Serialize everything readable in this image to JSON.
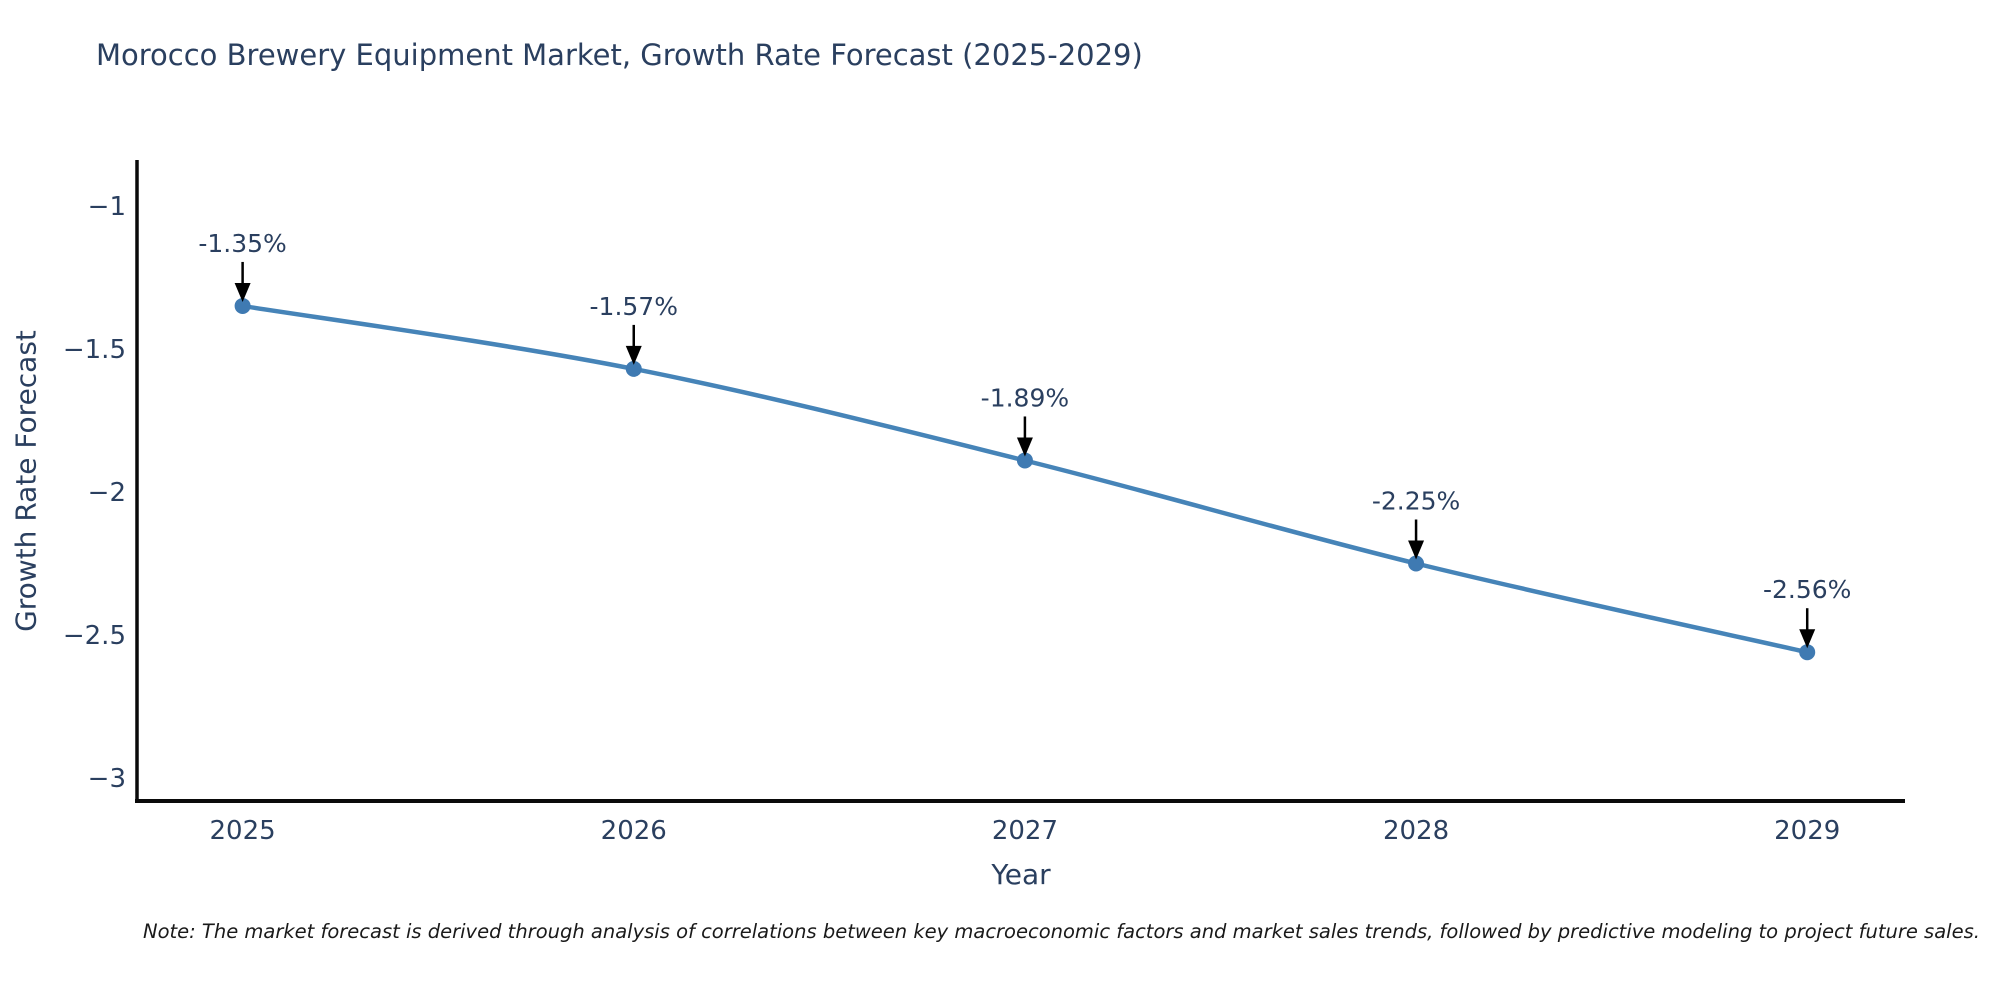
{
  "title": "Morocco Brewery Equipment Market, Growth Rate Forecast (2025-2029)",
  "note": "Note: The market forecast is derived through analysis of correlations between key macroeconomic factors and market sales trends, followed by predictive modeling to project future sales.",
  "chart_data": {
    "type": "line",
    "title": "Morocco Brewery Equipment Market, Growth Rate Forecast (2025-2029)",
    "xlabel": "Year",
    "ylabel": "Growth Rate Forecast",
    "x": [
      2025,
      2026,
      2027,
      2028,
      2029
    ],
    "values": [
      -1.35,
      -1.57,
      -1.89,
      -2.25,
      -2.56
    ],
    "point_labels": [
      "-1.35%",
      "-1.57%",
      "-1.89%",
      "-2.25%",
      "-2.56%"
    ],
    "xticks": [
      {
        "value": 2025,
        "label": "2025"
      },
      {
        "value": 2026,
        "label": "2026"
      },
      {
        "value": 2027,
        "label": "2027"
      },
      {
        "value": 2028,
        "label": "2028"
      },
      {
        "value": 2029,
        "label": "2029"
      }
    ],
    "yticks": [
      {
        "value": -1.0,
        "label": "−1"
      },
      {
        "value": -1.5,
        "label": "−1.5"
      },
      {
        "value": -2.0,
        "label": "−2"
      },
      {
        "value": -2.5,
        "label": "−2.5"
      },
      {
        "value": -3.0,
        "label": "−3"
      }
    ],
    "xlim": [
      2024.73,
      2029.25
    ],
    "ylim": [
      -3.08,
      -0.84
    ],
    "grid": false,
    "legend": false,
    "line_shape": "spline",
    "colors": {
      "line": "#4684b8",
      "marker": "#3f7ab2",
      "axis": "#0a0a0a",
      "text": "#2a3f5f",
      "arrow": "#000000"
    }
  }
}
